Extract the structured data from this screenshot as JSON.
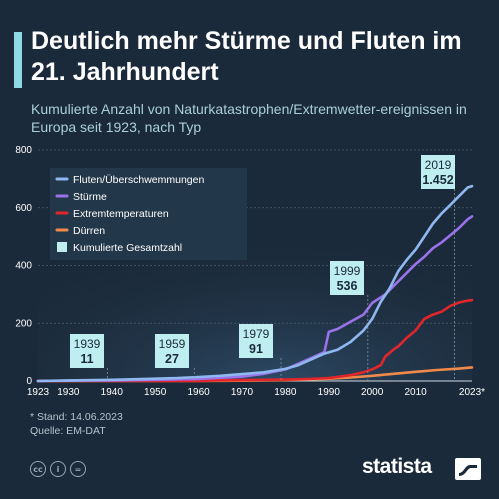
{
  "header": {
    "title": "Deutlich mehr Stürme und Fluten im 21. Jahrhundert",
    "subtitle": "Kumulierte Anzahl von Naturkatastrophen/Extremwetter-ereignissen in Europa seit 1923, nach Typ"
  },
  "footer": {
    "stand": "* Stand: 14.06.2023",
    "source": "Quelle: EM-DAT",
    "brand": "statista",
    "license_icons": [
      "cc-icon",
      "by-icon",
      "nd-icon"
    ]
  },
  "colors": {
    "background": "#1b2a3a",
    "fluten": "#8fb8f0",
    "stuerme": "#9a72ea",
    "extremtemperaturen": "#e0262b",
    "duerren": "#f08a4b",
    "gesamt_box": "#bfeef0",
    "accent": "#8fd8e6"
  },
  "chart_data": {
    "type": "line",
    "title": "Deutlich mehr Stürme und Fluten im 21. Jahrhundert",
    "subtitle": "Kumulierte Anzahl von Naturkatastrophen/Extremwetter-ereignissen in Europa seit 1923, nach Typ",
    "xlabel": "",
    "ylabel": "",
    "xlim": [
      1923,
      2023
    ],
    "ylim": [
      0,
      800
    ],
    "x_ticks": [
      1923,
      1930,
      1940,
      1950,
      1960,
      1970,
      1980,
      1990,
      2000,
      2010,
      2023
    ],
    "x_tick_labels": [
      "1923",
      "1930",
      "1940",
      "1950",
      "1960",
      "1970",
      "1980",
      "1990",
      "2000",
      "2010",
      "2023*"
    ],
    "y_ticks": [
      0,
      200,
      400,
      600,
      800
    ],
    "y_tick_labels": [
      "0",
      "200",
      "400",
      "600",
      "800"
    ],
    "grid": true,
    "legend_position": "top-left",
    "series": [
      {
        "name": "Fluten/Überschwemmungen",
        "color": "#8fb8f0",
        "points": [
          [
            1923,
            0
          ],
          [
            1930,
            2
          ],
          [
            1940,
            4
          ],
          [
            1950,
            8
          ],
          [
            1955,
            10
          ],
          [
            1960,
            14
          ],
          [
            1965,
            18
          ],
          [
            1970,
            24
          ],
          [
            1975,
            30
          ],
          [
            1980,
            42
          ],
          [
            1983,
            55
          ],
          [
            1986,
            75
          ],
          [
            1989,
            95
          ],
          [
            1992,
            108
          ],
          [
            1995,
            135
          ],
          [
            1998,
            175
          ],
          [
            2000,
            215
          ],
          [
            2002,
            275
          ],
          [
            2004,
            320
          ],
          [
            2006,
            380
          ],
          [
            2008,
            420
          ],
          [
            2010,
            455
          ],
          [
            2012,
            500
          ],
          [
            2014,
            545
          ],
          [
            2016,
            580
          ],
          [
            2018,
            610
          ],
          [
            2020,
            640
          ],
          [
            2022,
            670
          ],
          [
            2023,
            675
          ]
        ]
      },
      {
        "name": "Stürme",
        "color": "#9a72ea",
        "points": [
          [
            1923,
            0
          ],
          [
            1930,
            1
          ],
          [
            1940,
            2
          ],
          [
            1950,
            4
          ],
          [
            1960,
            7
          ],
          [
            1970,
            15
          ],
          [
            1975,
            25
          ],
          [
            1980,
            40
          ],
          [
            1983,
            60
          ],
          [
            1986,
            80
          ],
          [
            1989,
            100
          ],
          [
            1990,
            170
          ],
          [
            1992,
            180
          ],
          [
            1995,
            205
          ],
          [
            1998,
            230
          ],
          [
            2000,
            270
          ],
          [
            2003,
            300
          ],
          [
            2006,
            345
          ],
          [
            2008,
            375
          ],
          [
            2010,
            405
          ],
          [
            2012,
            430
          ],
          [
            2014,
            460
          ],
          [
            2016,
            480
          ],
          [
            2018,
            505
          ],
          [
            2020,
            530
          ],
          [
            2022,
            560
          ],
          [
            2023,
            570
          ]
        ]
      },
      {
        "name": "Extremtemperaturen",
        "color": "#e0262b",
        "points": [
          [
            1923,
            0
          ],
          [
            1960,
            0
          ],
          [
            1963,
            2
          ],
          [
            1970,
            3
          ],
          [
            1980,
            5
          ],
          [
            1985,
            7
          ],
          [
            1990,
            10
          ],
          [
            1995,
            20
          ],
          [
            1998,
            30
          ],
          [
            2000,
            40
          ],
          [
            2002,
            55
          ],
          [
            2003,
            85
          ],
          [
            2005,
            110
          ],
          [
            2006,
            120
          ],
          [
            2008,
            150
          ],
          [
            2010,
            175
          ],
          [
            2012,
            215
          ],
          [
            2014,
            230
          ],
          [
            2016,
            240
          ],
          [
            2018,
            260
          ],
          [
            2020,
            272
          ],
          [
            2022,
            278
          ],
          [
            2023,
            280
          ]
        ]
      },
      {
        "name": "Dürren",
        "color": "#f08a4b",
        "points": [
          [
            1923,
            0
          ],
          [
            1960,
            0
          ],
          [
            1970,
            1
          ],
          [
            1980,
            3
          ],
          [
            1990,
            8
          ],
          [
            1995,
            12
          ],
          [
            2000,
            18
          ],
          [
            2005,
            25
          ],
          [
            2010,
            32
          ],
          [
            2015,
            38
          ],
          [
            2020,
            43
          ],
          [
            2023,
            47
          ]
        ]
      }
    ],
    "annotations": [
      {
        "label": "Kumulierte Gesamtzahl",
        "year": "1939",
        "value": "11",
        "x": 1939,
        "y": 11
      },
      {
        "label": "Kumulierte Gesamtzahl",
        "year": "1959",
        "value": "27",
        "x": 1959,
        "y": 27
      },
      {
        "label": "Kumulierte Gesamtzahl",
        "year": "1979",
        "value": "91",
        "x": 1979,
        "y": 91
      },
      {
        "label": "Kumulierte Gesamtzahl",
        "year": "1999",
        "value": "536",
        "x": 1999,
        "y": 536
      },
      {
        "label": "Kumulierte Gesamtzahl",
        "year": "2019",
        "value": "1.452",
        "x": 2019,
        "y": 1452
      }
    ],
    "legend": [
      {
        "name": "Fluten/Überschwemmungen",
        "color": "#8fb8f0",
        "marker": "line"
      },
      {
        "name": "Stürme",
        "color": "#9a72ea",
        "marker": "line"
      },
      {
        "name": "Extremtemperaturen",
        "color": "#e0262b",
        "marker": "line"
      },
      {
        "name": "Dürren",
        "color": "#f08a4b",
        "marker": "line"
      },
      {
        "name": "Kumulierte Gesamtzahl",
        "color": "#bfeef0",
        "marker": "box"
      }
    ]
  }
}
